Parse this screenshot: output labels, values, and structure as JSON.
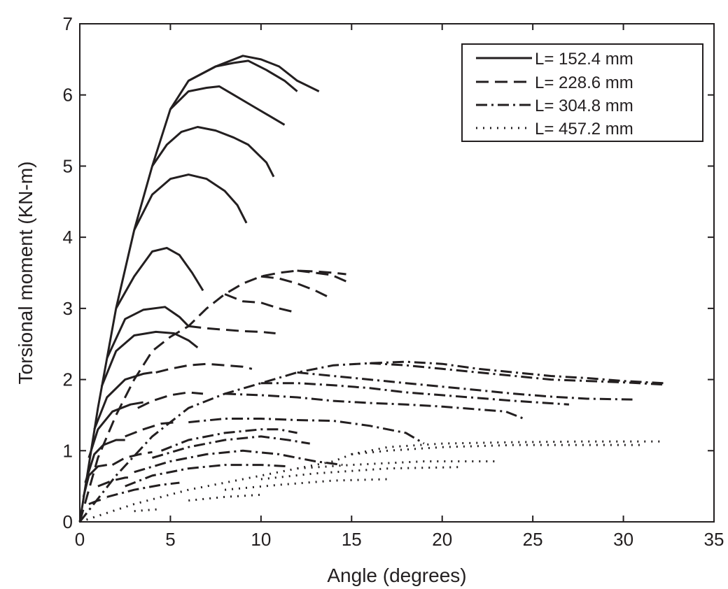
{
  "chart_data": {
    "type": "line",
    "xlabel": "Angle (degrees)",
    "ylabel": "Torsional moment (KN-m)",
    "xlim": [
      0,
      35
    ],
    "ylim": [
      0,
      7
    ],
    "xticks": [
      0,
      5,
      10,
      15,
      20,
      25,
      30,
      35
    ],
    "yticks": [
      0,
      1,
      2,
      3,
      4,
      5,
      6,
      7
    ],
    "grid": false,
    "legend_position": "top-right",
    "line_color": "#231f20",
    "series": [
      {
        "name": "L= 152.4 mm",
        "style": "solid",
        "curves": [
          [
            [
              0,
              0
            ],
            [
              1,
              1.6
            ],
            [
              2,
              3.0
            ],
            [
              3,
              4.1
            ],
            [
              4,
              5.0
            ],
            [
              5,
              5.8
            ],
            [
              6,
              6.2
            ],
            [
              7.5,
              6.4
            ],
            [
              9,
              6.55
            ],
            [
              10,
              6.5
            ],
            [
              11,
              6.4
            ],
            [
              12,
              6.2
            ],
            [
              13.2,
              6.05
            ]
          ],
          [
            [
              6,
              6.2
            ],
            [
              7.5,
              6.4
            ],
            [
              8.5,
              6.45
            ],
            [
              9.3,
              6.48
            ],
            [
              10.3,
              6.35
            ],
            [
              11.3,
              6.2
            ],
            [
              12,
              6.05
            ]
          ],
          [
            [
              5,
              5.8
            ],
            [
              6,
              6.05
            ],
            [
              7,
              6.1
            ],
            [
              7.7,
              6.12
            ],
            [
              8.5,
              6.0
            ],
            [
              9.5,
              5.85
            ],
            [
              10.5,
              5.7
            ],
            [
              11.3,
              5.58
            ]
          ],
          [
            [
              4,
              5.0
            ],
            [
              4.8,
              5.3
            ],
            [
              5.6,
              5.48
            ],
            [
              6.5,
              5.55
            ],
            [
              7.5,
              5.5
            ],
            [
              8.5,
              5.4
            ],
            [
              9.3,
              5.3
            ],
            [
              10.3,
              5.05
            ],
            [
              10.7,
              4.85
            ]
          ],
          [
            [
              3,
              4.1
            ],
            [
              4,
              4.6
            ],
            [
              5,
              4.82
            ],
            [
              6,
              4.88
            ],
            [
              7,
              4.82
            ],
            [
              8,
              4.65
            ],
            [
              8.7,
              4.45
            ],
            [
              9.2,
              4.2
            ]
          ],
          [
            [
              2,
              3.0
            ],
            [
              3,
              3.45
            ],
            [
              4,
              3.8
            ],
            [
              4.8,
              3.85
            ],
            [
              5.5,
              3.75
            ],
            [
              6.2,
              3.5
            ],
            [
              6.8,
              3.25
            ]
          ],
          [
            [
              1.5,
              2.3
            ],
            [
              2.5,
              2.85
            ],
            [
              3.5,
              2.98
            ],
            [
              4.7,
              3.02
            ],
            [
              5.5,
              2.88
            ],
            [
              6,
              2.75
            ]
          ],
          [
            [
              1.2,
              1.9
            ],
            [
              2,
              2.4
            ],
            [
              3,
              2.62
            ],
            [
              4.2,
              2.67
            ],
            [
              5.2,
              2.65
            ],
            [
              6,
              2.55
            ],
            [
              6.5,
              2.45
            ]
          ],
          [
            [
              0.8,
              1.3
            ],
            [
              1.5,
              1.75
            ],
            [
              2.5,
              2.0
            ],
            [
              3.5,
              2.08
            ],
            [
              4,
              2.1
            ]
          ],
          [
            [
              0.5,
              0.9
            ],
            [
              1,
              1.3
            ],
            [
              1.8,
              1.55
            ],
            [
              2.8,
              1.65
            ],
            [
              3.5,
              1.68
            ]
          ],
          [
            [
              0.3,
              0.55
            ],
            [
              0.8,
              0.95
            ],
            [
              1.3,
              1.08
            ],
            [
              2,
              1.15
            ],
            [
              2.5,
              1.15
            ]
          ],
          [
            [
              0.2,
              0.35
            ],
            [
              0.5,
              0.65
            ],
            [
              1,
              0.78
            ],
            [
              1.5,
              0.8
            ]
          ]
        ]
      },
      {
        "name": "L= 228.6 mm",
        "style": "dashed",
        "curves": [
          [
            [
              0,
              0
            ],
            [
              1,
              0.9
            ],
            [
              2,
              1.5
            ],
            [
              3,
              2.0
            ],
            [
              4,
              2.4
            ],
            [
              5,
              2.6
            ],
            [
              6,
              2.75
            ],
            [
              7,
              3.0
            ],
            [
              8,
              3.2
            ],
            [
              9,
              3.35
            ],
            [
              10,
              3.45
            ],
            [
              11,
              3.5
            ],
            [
              12,
              3.53
            ],
            [
              13,
              3.52
            ],
            [
              14,
              3.5
            ],
            [
              14.7,
              3.48
            ]
          ],
          [
            [
              12,
              3.53
            ],
            [
              13,
              3.5
            ],
            [
              13.9,
              3.47
            ],
            [
              14.7,
              3.38
            ]
          ],
          [
            [
              10,
              3.45
            ],
            [
              11,
              3.42
            ],
            [
              12,
              3.35
            ],
            [
              13,
              3.25
            ],
            [
              13.8,
              3.15
            ]
          ],
          [
            [
              8,
              3.2
            ],
            [
              9,
              3.1
            ],
            [
              10,
              3.08
            ],
            [
              11,
              3.0
            ],
            [
              11.8,
              2.95
            ]
          ],
          [
            [
              6,
              2.75
            ],
            [
              7,
              2.72
            ],
            [
              8,
              2.7
            ],
            [
              9,
              2.68
            ],
            [
              10,
              2.67
            ],
            [
              10.8,
              2.65
            ]
          ],
          [
            [
              4.2,
              2.1
            ],
            [
              5,
              2.15
            ],
            [
              6,
              2.2
            ],
            [
              7,
              2.22
            ],
            [
              8,
              2.2
            ],
            [
              9,
              2.18
            ],
            [
              9.5,
              2.15
            ]
          ],
          [
            [
              3.2,
              1.6
            ],
            [
              4,
              1.7
            ],
            [
              5,
              1.78
            ],
            [
              6,
              1.82
            ],
            [
              6.8,
              1.8
            ]
          ],
          [
            [
              2.5,
              1.2
            ],
            [
              3.5,
              1.3
            ],
            [
              4.5,
              1.38
            ],
            [
              5.3,
              1.4
            ]
          ],
          [
            [
              1.8,
              0.8
            ],
            [
              2.5,
              0.9
            ],
            [
              3.3,
              0.95
            ],
            [
              4,
              0.98
            ]
          ],
          [
            [
              1,
              0.5
            ],
            [
              1.8,
              0.58
            ],
            [
              2.5,
              0.62
            ],
            [
              3,
              0.63
            ]
          ],
          [
            [
              0.5,
              0.25
            ],
            [
              1,
              0.3
            ],
            [
              1.5,
              0.33
            ]
          ]
        ]
      },
      {
        "name": "L= 304.8 mm",
        "style": "dashdot",
        "curves": [
          [
            [
              0,
              0
            ],
            [
              2,
              0.65
            ],
            [
              4,
              1.2
            ],
            [
              6,
              1.6
            ],
            [
              8,
              1.8
            ],
            [
              10,
              1.95
            ],
            [
              12,
              2.1
            ],
            [
              14,
              2.2
            ],
            [
              16,
              2.23
            ],
            [
              18,
              2.25
            ],
            [
              20,
              2.22
            ],
            [
              22,
              2.15
            ],
            [
              24,
              2.1
            ],
            [
              26,
              2.05
            ],
            [
              28,
              2.02
            ],
            [
              30,
              1.98
            ],
            [
              32.2,
              1.95
            ]
          ],
          [
            [
              16,
              2.23
            ],
            [
              18,
              2.2
            ],
            [
              20,
              2.15
            ],
            [
              22,
              2.1
            ],
            [
              24,
              2.05
            ],
            [
              26,
              2.0
            ],
            [
              28,
              1.98
            ],
            [
              30,
              1.96
            ],
            [
              32.2,
              1.93
            ]
          ],
          [
            [
              12,
              2.1
            ],
            [
              14,
              2.05
            ],
            [
              16,
              2.0
            ],
            [
              18,
              1.95
            ],
            [
              20,
              1.9
            ],
            [
              22,
              1.85
            ],
            [
              24,
              1.8
            ],
            [
              26,
              1.76
            ],
            [
              28,
              1.73
            ],
            [
              30.5,
              1.72
            ]
          ],
          [
            [
              10,
              1.95
            ],
            [
              12,
              1.95
            ],
            [
              14,
              1.92
            ],
            [
              16,
              1.88
            ],
            [
              18,
              1.82
            ],
            [
              20,
              1.78
            ],
            [
              22,
              1.74
            ],
            [
              24,
              1.7
            ],
            [
              27,
              1.65
            ]
          ],
          [
            [
              8,
              1.8
            ],
            [
              10,
              1.78
            ],
            [
              12,
              1.75
            ],
            [
              14,
              1.7
            ],
            [
              16,
              1.67
            ],
            [
              18,
              1.65
            ],
            [
              20,
              1.62
            ],
            [
              22,
              1.58
            ],
            [
              23.5,
              1.55
            ],
            [
              24.5,
              1.45
            ]
          ],
          [
            [
              6,
              1.4
            ],
            [
              8,
              1.45
            ],
            [
              10,
              1.45
            ],
            [
              12,
              1.43
            ],
            [
              14,
              1.42
            ],
            [
              16,
              1.35
            ],
            [
              18,
              1.25
            ],
            [
              19,
              1.1
            ]
          ],
          [
            [
              4.5,
              1.0
            ],
            [
              6,
              1.15
            ],
            [
              8,
              1.25
            ],
            [
              10,
              1.3
            ],
            [
              11,
              1.3
            ],
            [
              12,
              1.25
            ]
          ],
          [
            [
              4,
              0.9
            ],
            [
              6,
              1.05
            ],
            [
              8,
              1.15
            ],
            [
              10,
              1.2
            ],
            [
              11.5,
              1.15
            ],
            [
              12.7,
              1.1
            ]
          ],
          [
            [
              3,
              0.7
            ],
            [
              5,
              0.85
            ],
            [
              7,
              0.95
            ],
            [
              9,
              1.0
            ],
            [
              11,
              0.95
            ],
            [
              13,
              0.85
            ],
            [
              14.5,
              0.8
            ]
          ],
          [
            [
              2.5,
              0.5
            ],
            [
              4,
              0.65
            ],
            [
              6,
              0.75
            ],
            [
              8,
              0.8
            ],
            [
              10,
              0.8
            ],
            [
              11.5,
              0.78
            ]
          ],
          [
            [
              1.5,
              0.35
            ],
            [
              3,
              0.45
            ],
            [
              4.5,
              0.52
            ],
            [
              5.5,
              0.55
            ]
          ]
        ]
      },
      {
        "name": "L= 457.2 mm",
        "style": "dotted",
        "curves": [
          [
            [
              0,
              0
            ],
            [
              3,
              0.25
            ],
            [
              6,
              0.45
            ],
            [
              9,
              0.6
            ],
            [
              12,
              0.75
            ],
            [
              14,
              0.85
            ],
            [
              15,
              0.95
            ],
            [
              17,
              1.05
            ],
            [
              20,
              1.1
            ],
            [
              24,
              1.12
            ],
            [
              28,
              1.13
            ],
            [
              32,
              1.13
            ]
          ],
          [
            [
              15,
              0.95
            ],
            [
              17,
              1.0
            ],
            [
              20,
              1.05
            ],
            [
              24,
              1.08
            ],
            [
              28,
              1.08
            ],
            [
              31,
              1.08
            ]
          ],
          [
            [
              12,
              0.75
            ],
            [
              15,
              0.8
            ],
            [
              19,
              0.85
            ],
            [
              23,
              0.85
            ]
          ],
          [
            [
              10,
              0.6
            ],
            [
              13,
              0.68
            ],
            [
              17,
              0.75
            ],
            [
              21,
              0.77
            ]
          ],
          [
            [
              8,
              0.45
            ],
            [
              11,
              0.52
            ],
            [
              14,
              0.58
            ],
            [
              17,
              0.6
            ]
          ],
          [
            [
              6,
              0.3
            ],
            [
              8,
              0.35
            ],
            [
              10,
              0.38
            ]
          ],
          [
            [
              3,
              0.15
            ],
            [
              4.5,
              0.18
            ]
          ]
        ]
      }
    ]
  }
}
